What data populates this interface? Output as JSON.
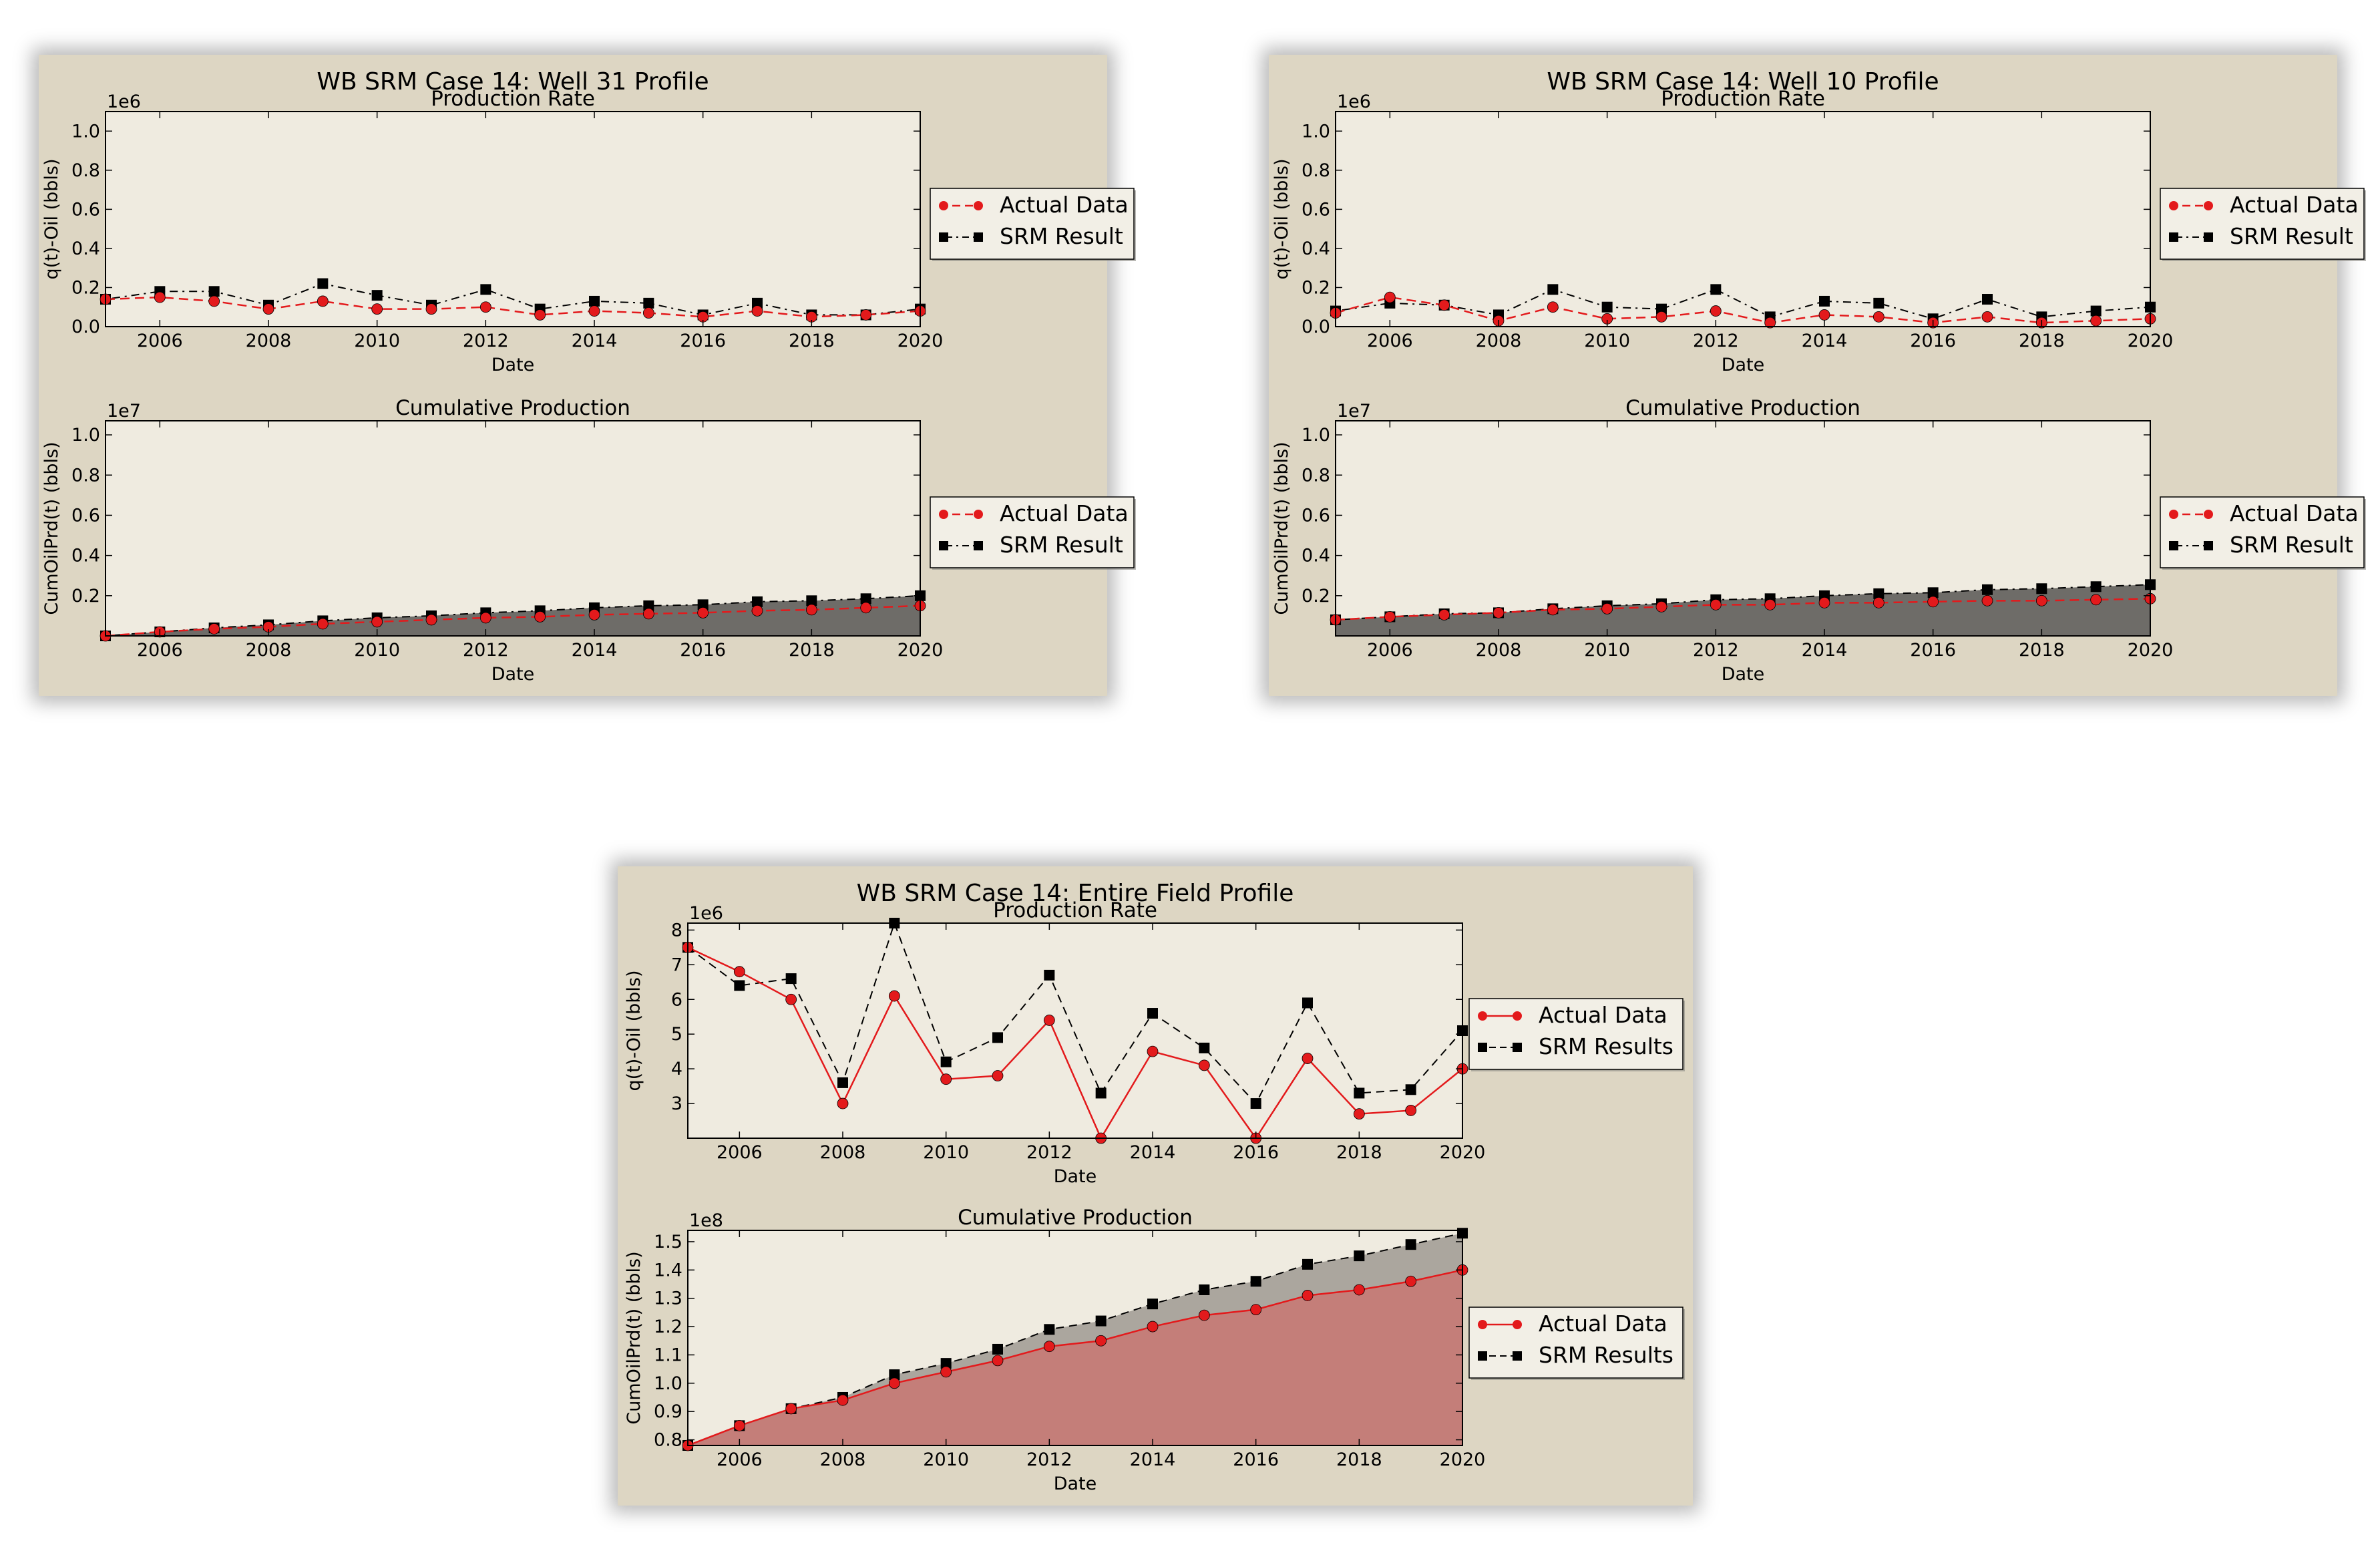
{
  "colors": {
    "figure_bg": "#ddd6c3",
    "axes_bg": "#efebe0",
    "actual": "#e31a1c",
    "srm": "#000000",
    "fill_srm_well": "#6e6c68",
    "fill_srm_field": "#aba69e",
    "fill_actual_field": "#c47e79"
  },
  "years": [
    2005,
    2006,
    2007,
    2008,
    2009,
    2010,
    2011,
    2012,
    2013,
    2014,
    2015,
    2016,
    2017,
    2018,
    2019,
    2020
  ],
  "chart_data": [
    {
      "id": "well31",
      "suptitle": "WB SRM Case 14: Well 31 Profile",
      "legend_labels": [
        "Actual Data",
        "SRM Result"
      ],
      "rate": {
        "type": "line",
        "title": "Production Rate",
        "xlabel": "Date",
        "ylabel": "q(t)-Oil (bbls)",
        "multiplier": "1e6",
        "ylim": [
          0,
          1.1
        ],
        "yticks": [
          0.0,
          0.2,
          0.4,
          0.6,
          0.8,
          1.0
        ],
        "ytick_labels": [
          "0.0",
          "0.2",
          "0.4",
          "0.6",
          "0.8",
          "1.0"
        ],
        "xticks": [
          "2006",
          "2008",
          "2010",
          "2012",
          "2014",
          "2016",
          "2018",
          "2020"
        ],
        "series": [
          {
            "name": "Actual Data",
            "values": [
              0.14,
              0.15,
              0.13,
              0.09,
              0.13,
              0.09,
              0.09,
              0.1,
              0.06,
              0.08,
              0.07,
              0.05,
              0.08,
              0.05,
              0.06,
              0.08
            ]
          },
          {
            "name": "SRM Result",
            "values": [
              0.14,
              0.18,
              0.18,
              0.11,
              0.22,
              0.16,
              0.11,
              0.19,
              0.09,
              0.13,
              0.12,
              0.06,
              0.12,
              0.06,
              0.06,
              0.09
            ]
          }
        ]
      },
      "cumulative": {
        "type": "area",
        "title": "Cumulative Production",
        "xlabel": "Date",
        "ylabel": "CumOilPrd(t) (bbls)",
        "multiplier": "1e7",
        "ylim": [
          0,
          1.07
        ],
        "yticks": [
          0.2,
          0.4,
          0.6,
          0.8,
          1.0
        ],
        "ytick_labels": [
          "0.2",
          "0.4",
          "0.6",
          "0.8",
          "1.0"
        ],
        "xticks": [
          "2006",
          "2008",
          "2010",
          "2012",
          "2014",
          "2016",
          "2018",
          "2020"
        ],
        "series": [
          {
            "name": "Actual Data",
            "values": [
              0.0,
              0.02,
              0.035,
              0.045,
              0.06,
              0.07,
              0.08,
              0.09,
              0.095,
              0.105,
              0.11,
              0.115,
              0.125,
              0.13,
              0.14,
              0.15
            ]
          },
          {
            "name": "SRM Result",
            "values": [
              0.0,
              0.02,
              0.04,
              0.055,
              0.075,
              0.09,
              0.1,
              0.115,
              0.125,
              0.14,
              0.15,
              0.155,
              0.17,
              0.175,
              0.185,
              0.2
            ]
          }
        ]
      }
    },
    {
      "id": "well10",
      "suptitle": "WB SRM Case 14: Well 10 Profile",
      "legend_labels": [
        "Actual Data",
        "SRM Result"
      ],
      "rate": {
        "type": "line",
        "title": "Production Rate",
        "xlabel": "Date",
        "ylabel": "q(t)-Oil (bbls)",
        "multiplier": "1e6",
        "ylim": [
          0,
          1.1
        ],
        "yticks": [
          0.0,
          0.2,
          0.4,
          0.6,
          0.8,
          1.0
        ],
        "ytick_labels": [
          "0.0",
          "0.2",
          "0.4",
          "0.6",
          "0.8",
          "1.0"
        ],
        "xticks": [
          "2006",
          "2008",
          "2010",
          "2012",
          "2014",
          "2016",
          "2018",
          "2020"
        ],
        "series": [
          {
            "name": "Actual Data",
            "values": [
              0.07,
              0.15,
              0.11,
              0.03,
              0.1,
              0.04,
              0.05,
              0.08,
              0.02,
              0.06,
              0.05,
              0.02,
              0.05,
              0.02,
              0.03,
              0.04
            ]
          },
          {
            "name": "SRM Result",
            "values": [
              0.08,
              0.12,
              0.11,
              0.06,
              0.19,
              0.1,
              0.09,
              0.19,
              0.05,
              0.13,
              0.12,
              0.04,
              0.14,
              0.05,
              0.08,
              0.1
            ]
          }
        ]
      },
      "cumulative": {
        "type": "area",
        "title": "Cumulative Production",
        "xlabel": "Date",
        "ylabel": "CumOilPrd(t) (bbls)",
        "multiplier": "1e7",
        "ylim": [
          0,
          1.07
        ],
        "yticks": [
          0.2,
          0.4,
          0.6,
          0.8,
          1.0
        ],
        "ytick_labels": [
          "0.2",
          "0.4",
          "0.6",
          "0.8",
          "1.0"
        ],
        "xticks": [
          "2006",
          "2008",
          "2010",
          "2012",
          "2014",
          "2016",
          "2018",
          "2020"
        ],
        "series": [
          {
            "name": "Actual Data",
            "values": [
              0.08,
              0.095,
              0.105,
              0.115,
              0.13,
              0.135,
              0.145,
              0.155,
              0.155,
              0.165,
              0.165,
              0.17,
              0.175,
              0.175,
              0.18,
              0.185
            ]
          },
          {
            "name": "SRM Result",
            "values": [
              0.08,
              0.095,
              0.11,
              0.115,
              0.135,
              0.15,
              0.16,
              0.18,
              0.185,
              0.2,
              0.21,
              0.215,
              0.23,
              0.235,
              0.245,
              0.255
            ]
          }
        ]
      }
    },
    {
      "id": "field",
      "suptitle": "WB SRM Case 14: Entire Field Profile",
      "legend_labels": [
        "Actual Data",
        "SRM Results"
      ],
      "rate": {
        "type": "line",
        "title": "Production Rate",
        "xlabel": "Date",
        "ylabel": "q(t)-Oil (bbls)",
        "multiplier": "1e6",
        "ylim": [
          2.0,
          8.2
        ],
        "yticks": [
          3,
          4,
          5,
          6,
          7,
          8
        ],
        "ytick_labels": [
          "3",
          "4",
          "5",
          "6",
          "7",
          "8"
        ],
        "xticks": [
          "2006",
          "2008",
          "2010",
          "2012",
          "2014",
          "2016",
          "2018",
          "2020"
        ],
        "series": [
          {
            "name": "Actual Data",
            "values": [
              7.5,
              6.8,
              6.0,
              3.0,
              6.1,
              3.7,
              3.8,
              5.4,
              2.0,
              4.5,
              4.1,
              2.0,
              4.3,
              2.7,
              2.8,
              4.0
            ]
          },
          {
            "name": "SRM Results",
            "values": [
              7.5,
              6.4,
              6.6,
              3.6,
              8.2,
              4.2,
              4.9,
              6.7,
              3.3,
              5.6,
              4.6,
              3.0,
              5.9,
              3.3,
              3.4,
              5.1
            ]
          }
        ]
      },
      "cumulative": {
        "type": "area",
        "title": "Cumulative Production",
        "xlabel": "Date",
        "ylabel": "CumOilPrd(t) (bbls)",
        "multiplier": "1e8",
        "ylim": [
          0.78,
          1.54
        ],
        "yticks": [
          0.8,
          0.9,
          1.0,
          1.1,
          1.2,
          1.3,
          1.4,
          1.5
        ],
        "ytick_labels": [
          "0.8",
          "0.9",
          "1.0",
          "1.1",
          "1.2",
          "1.3",
          "1.4",
          "1.5"
        ],
        "xticks": [
          "2006",
          "2008",
          "2010",
          "2012",
          "2014",
          "2016",
          "2018",
          "2020"
        ],
        "series": [
          {
            "name": "Actual Data",
            "values": [
              0.78,
              0.85,
              0.91,
              0.94,
              1.0,
              1.04,
              1.08,
              1.13,
              1.15,
              1.2,
              1.24,
              1.26,
              1.31,
              1.33,
              1.36,
              1.4
            ]
          },
          {
            "name": "SRM Results",
            "values": [
              0.78,
              0.85,
              0.91,
              0.95,
              1.03,
              1.07,
              1.12,
              1.19,
              1.22,
              1.28,
              1.33,
              1.36,
              1.42,
              1.45,
              1.49,
              1.53
            ]
          }
        ]
      }
    }
  ]
}
